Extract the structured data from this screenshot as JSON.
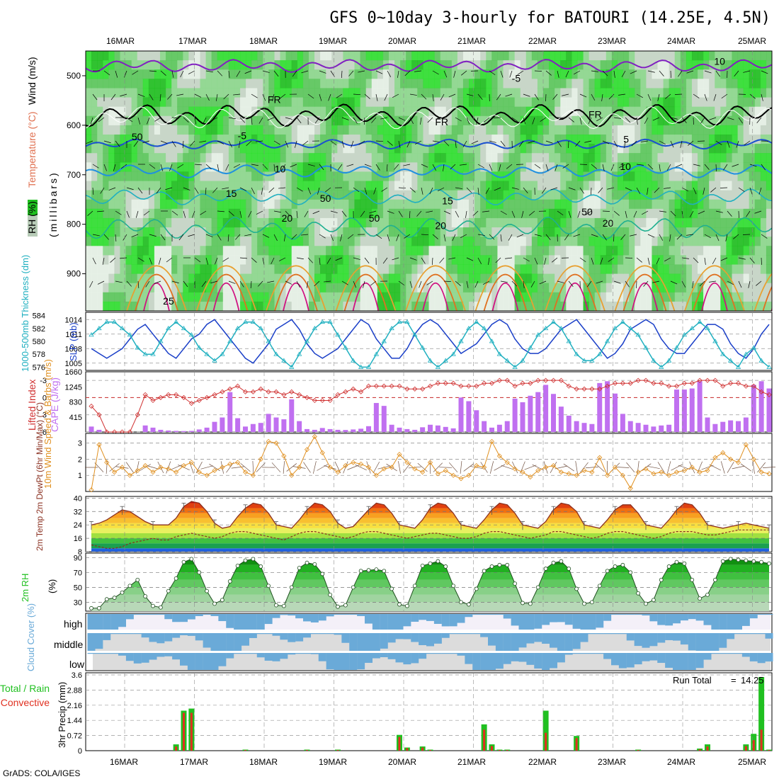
{
  "title": "GFS 0~10day 3-hourly for BATOURI (14.25E, 4.5N)",
  "footer": "GrADS: COLA/IGES",
  "dates": [
    "16MAR",
    "17MAR",
    "18MAR",
    "19MAR",
    "20MAR",
    "21MAR",
    "22MAR",
    "23MAR",
    "24MAR",
    "25MAR"
  ],
  "colors": {
    "cape_bar": "#c070f0",
    "lifted_index": "#d03030",
    "wind_speed": "#e09020",
    "slp": "#1a3fc8",
    "thickness": "#20b0c0",
    "rh_green": "#20c020",
    "cloud_blue": "#6aaad8",
    "precip_total": "#20c020",
    "precip_conv": "#e03020",
    "temp_line": "#8a3020"
  },
  "chart_data": [
    {
      "type": "heatmap",
      "name": "upper-air",
      "axis_title_rh": "RH (%)",
      "axis_title_temp": "Temperature (°C)",
      "axis_title_wind": "Wind (m/s)",
      "ylabel": "(millibars)",
      "yticks": [
        500,
        600,
        700,
        800,
        900
      ],
      "ylim": [
        450,
        975
      ],
      "contour_labels": [
        {
          "text": "-5",
          "x": 5.55,
          "p": 512
        },
        {
          "text": "-5",
          "x": 1.62,
          "p": 628
        },
        {
          "text": "5",
          "x": 7.15,
          "p": 635
        },
        {
          "text": "10",
          "x": 2.15,
          "p": 695
        },
        {
          "text": "10",
          "x": 7.1,
          "p": 690
        },
        {
          "text": "15",
          "x": 1.45,
          "p": 745
        },
        {
          "text": "15",
          "x": 4.55,
          "p": 760
        },
        {
          "text": "20",
          "x": 2.25,
          "p": 795
        },
        {
          "text": "20",
          "x": 4.45,
          "p": 810
        },
        {
          "text": "20",
          "x": 6.85,
          "p": 805
        },
        {
          "text": "25",
          "x": 0.55,
          "p": 962
        },
        {
          "text": "FR",
          "x": 2.05,
          "p": 555
        },
        {
          "text": "FR",
          "x": 4.45,
          "p": 600
        },
        {
          "text": "FR",
          "x": 6.65,
          "p": 585
        },
        {
          "text": "50",
          "x": 0.1,
          "p": 630
        },
        {
          "text": "50",
          "x": 2.8,
          "p": 755
        },
        {
          "text": "50",
          "x": 3.5,
          "p": 795
        },
        {
          "text": "50",
          "x": 6.55,
          "p": 782
        },
        {
          "text": "10",
          "x": 8.45,
          "p": 478
        }
      ]
    },
    {
      "type": "line",
      "name": "slp-thickness",
      "ylabel_left": "1000-500mb Thickness (dm)",
      "ylabel_right": "SLP (mb)",
      "left_ticks": [
        576,
        578,
        580,
        582,
        584
      ],
      "right_ticks": [
        1005,
        1008,
        1011,
        1014
      ],
      "series": [
        {
          "name": "SLP",
          "axis": "right",
          "values": [
            1008,
            1007,
            1006,
            1007,
            1008,
            1010,
            1012,
            1013,
            1011,
            1009,
            1007,
            1006,
            1008,
            1010,
            1011,
            1013,
            1014,
            1012,
            1010,
            1008,
            1006,
            1005,
            1007,
            1009,
            1012,
            1013,
            1014,
            1012,
            1009,
            1007,
            1006,
            1007,
            1008,
            1010,
            1012,
            1014,
            1013,
            1010,
            1008,
            1006,
            1006,
            1008,
            1011,
            1013,
            1014,
            1013,
            1011,
            1009,
            1007,
            1008,
            1009,
            1011,
            1013,
            1014,
            1013,
            1010,
            1008,
            1007,
            1007,
            1008,
            1010,
            1012,
            1013,
            1014,
            1012,
            1010,
            1008,
            1006,
            1007,
            1009,
            1012,
            1013,
            1014,
            1013,
            1010,
            1008,
            1007,
            1007,
            1009,
            1011,
            1013,
            1013,
            1012,
            1009,
            1007,
            1006,
            1008,
            1011,
            1013
          ]
        },
        {
          "name": "Thickness",
          "axis": "left",
          "values": [
            581,
            582,
            583,
            583,
            582,
            581,
            579,
            578,
            578,
            580,
            582,
            583,
            582,
            581,
            579,
            578,
            577,
            578,
            580,
            582,
            583,
            583,
            582,
            580,
            578,
            577,
            576,
            578,
            580,
            582,
            583,
            583,
            581,
            579,
            577,
            576,
            576,
            578,
            580,
            582,
            583,
            583,
            581,
            579,
            577,
            576,
            577,
            578,
            580,
            582,
            583,
            582,
            580,
            578,
            577,
            576,
            577,
            579,
            581,
            582,
            583,
            582,
            580,
            578,
            577,
            577,
            578,
            580,
            582,
            583,
            582,
            581,
            579,
            577,
            576,
            577,
            579,
            581,
            582,
            583,
            582,
            580,
            578,
            577,
            576,
            578,
            579,
            577,
            576
          ]
        }
      ]
    },
    {
      "type": "bar",
      "name": "cape-li",
      "ylabel_left": "Lifted Index",
      "ylabel_right": "CAPE (J/kg)",
      "left_ticks": [
        -3,
        0,
        3,
        6
      ],
      "right_ticks": [
        415,
        830,
        1245,
        1660
      ],
      "cape": [
        150,
        60,
        10,
        0,
        0,
        0,
        0,
        180,
        120,
        60,
        40,
        30,
        25,
        30,
        70,
        120,
        280,
        400,
        1100,
        380,
        150,
        220,
        250,
        500,
        400,
        350,
        900,
        300,
        80,
        60,
        110,
        80,
        60,
        55,
        70,
        90,
        160,
        800,
        720,
        200,
        120,
        80,
        60,
        130,
        200,
        180,
        140,
        100,
        950,
        850,
        600,
        300,
        120,
        200,
        300,
        920,
        820,
        1000,
        1100,
        1300,
        1050,
        700,
        450,
        300,
        250,
        220,
        1350,
        1400,
        1060,
        500,
        300,
        250,
        200,
        150,
        180,
        200,
        1170,
        1170,
        1200,
        1400,
        400,
        220,
        280,
        320,
        300,
        400,
        1300,
        1400,
        1200
      ],
      "li": [
        1.5,
        3,
        6,
        6,
        6,
        6,
        3,
        -0.5,
        0.5,
        0,
        -0.5,
        -0.5,
        0,
        1,
        0.5,
        0,
        -0.5,
        -1,
        -1.5,
        -2,
        -1,
        -1,
        -1.5,
        -1,
        -1,
        -0.5,
        -1,
        -0.5,
        0,
        0.5,
        0.5,
        0.5,
        -0.5,
        -1,
        -1.5,
        -1,
        -2,
        -2,
        -2,
        -2,
        -2,
        -1.5,
        -1.5,
        -1.5,
        -2,
        -2.5,
        -2.5,
        -2.5,
        -2,
        -2,
        -2,
        -2.5,
        -2.5,
        -3,
        -3,
        -2,
        -2.5,
        -2.5,
        -3,
        -3,
        -3,
        -3,
        -2,
        -1.5,
        -1.5,
        -1.5,
        -1.5,
        -2,
        -2.5,
        -2.5,
        -2.5,
        -3,
        -3,
        -2.5,
        -2.5,
        -2,
        -2,
        -2.5,
        -2.5,
        -3,
        -3,
        -3,
        -2,
        -2.5,
        -2.5,
        -2,
        -2,
        -1,
        -0.5
      ]
    },
    {
      "type": "line",
      "name": "wind10m",
      "ylabel": "10m Wind Speed & Barbs (m/s)",
      "yticks": [
        1,
        2,
        3
      ],
      "values": [
        0.1,
        2.9,
        1.8,
        1.2,
        1.5,
        1.0,
        1.3,
        1.6,
        1.2,
        1.5,
        1.4,
        1.2,
        1.6,
        1.8,
        1.2,
        1.0,
        1.3,
        1.5,
        1.7,
        1.8,
        1.2,
        1.0,
        2.0,
        3.1,
        3.0,
        2.2,
        1.0,
        1.5,
        2.6,
        3.4,
        2.4,
        1.5,
        1.2,
        1.6,
        1.8,
        1.7,
        1.5,
        1.0,
        1.4,
        1.5,
        2.3,
        1.8,
        1.4,
        1.2,
        1.8,
        1.1,
        1.3,
        1.0,
        0.8,
        1.0,
        1.6,
        1.5,
        3.1,
        2.2,
        1.8,
        1.4,
        1.2,
        0.9,
        1.3,
        1.5,
        1.6,
        1.2,
        1.1,
        1.0,
        1.3,
        1.2,
        2.1,
        1.0,
        1.5,
        1.0,
        0.2,
        1.2,
        1.4,
        1.1,
        1.2,
        1.0,
        1.2,
        1.3,
        1.5,
        1.2,
        1.3,
        2.1,
        2.4,
        2.0,
        1.8,
        2.9,
        2.0,
        1.2,
        1.1
      ]
    },
    {
      "type": "area",
      "name": "temp2m",
      "ylabel": "2m Temp 2m DewPt (6hr Min/Max) (°C)",
      "yticks": [
        8,
        16,
        24,
        32,
        40
      ],
      "temp": [
        24,
        25,
        27,
        30,
        33,
        32,
        29,
        26,
        24,
        24,
        24,
        28,
        35,
        38,
        37,
        32,
        25,
        22,
        23,
        29,
        34,
        37,
        36,
        31,
        24,
        23,
        22,
        27,
        33,
        37,
        36,
        32,
        25,
        22,
        23,
        28,
        33,
        37,
        36,
        31,
        24,
        23,
        22,
        27,
        34,
        37,
        36,
        31,
        24,
        23,
        22,
        27,
        33,
        37,
        36,
        31,
        24,
        23,
        22,
        26,
        33,
        37,
        36,
        32,
        24,
        23,
        22,
        27,
        33,
        36,
        36,
        31,
        24,
        23,
        22,
        27,
        33,
        37,
        36,
        31,
        24,
        23,
        22,
        23,
        24,
        25,
        24,
        23,
        22
      ],
      "dewpt": [
        12,
        11,
        10,
        10,
        11,
        13,
        14,
        15,
        16,
        15,
        15,
        17,
        18,
        19,
        18,
        17,
        16,
        17,
        19,
        20,
        20,
        19,
        18,
        17,
        16,
        15,
        17,
        19,
        20,
        20,
        19,
        18,
        17,
        16,
        17,
        19,
        20,
        20,
        19,
        18,
        17,
        16,
        17,
        18,
        19,
        19,
        18,
        17,
        16,
        16,
        17,
        19,
        20,
        20,
        19,
        18,
        17,
        16,
        17,
        18,
        20,
        20,
        19,
        18,
        17,
        16,
        17,
        19,
        20,
        20,
        19,
        18,
        17,
        16,
        17,
        19,
        20,
        20,
        20,
        19,
        18,
        18,
        19,
        20,
        21,
        21,
        21,
        21,
        21
      ]
    },
    {
      "type": "area",
      "name": "rh2m",
      "ylabel": "2m RH",
      "ylabel_unit": "(%)",
      "yticks": [
        30,
        50,
        70,
        90
      ],
      "values": [
        22,
        22,
        34,
        36,
        43,
        52,
        60,
        38,
        25,
        23,
        45,
        62,
        84,
        88,
        70,
        45,
        28,
        33,
        58,
        79,
        86,
        88,
        78,
        52,
        26,
        25,
        50,
        76,
        83,
        81,
        68,
        40,
        24,
        26,
        50,
        72,
        73,
        74,
        72,
        48,
        27,
        25,
        52,
        79,
        82,
        85,
        78,
        52,
        30,
        27,
        48,
        72,
        78,
        80,
        80,
        55,
        29,
        28,
        50,
        75,
        83,
        85,
        75,
        48,
        28,
        30,
        52,
        72,
        78,
        80,
        70,
        42,
        28,
        33,
        60,
        78,
        84,
        82,
        60,
        35,
        40,
        60,
        85,
        88,
        87,
        86,
        85,
        84,
        82
      ],
      "vertical_markers": [
        0.5,
        1.35,
        1.45,
        2.4,
        2.5,
        3.7,
        4.85,
        5.75,
        6.75,
        7.95,
        8.75,
        9.2
      ]
    },
    {
      "type": "heatmap",
      "name": "cloud",
      "ylabel": "Cloud Cover (%)",
      "rows": [
        "high",
        "middle",
        "low"
      ]
    },
    {
      "type": "bar",
      "name": "precip",
      "ylabel_left": "Total / Rain",
      "ylabel_left2": "Convective",
      "ylabel": "3hr Precip (mm)",
      "yticks": [
        0,
        0.72,
        1.44,
        2.16,
        2.88,
        3.6
      ],
      "run_total_label": "Run Total",
      "run_total_eq": "=",
      "run_total_value": "14.25",
      "total": [
        0,
        0,
        0,
        0,
        0,
        0,
        0,
        0,
        0,
        0,
        0,
        0.3,
        1.9,
        2.0,
        0,
        0,
        0,
        0,
        0,
        0,
        0.05,
        0,
        0,
        0,
        0,
        0,
        0,
        0,
        0.05,
        0,
        0,
        0,
        0.05,
        0,
        0,
        0,
        0,
        0,
        0,
        0,
        0.75,
        0.15,
        0,
        0.2,
        0.05,
        0,
        0,
        0,
        0,
        0,
        0,
        1.25,
        0.3,
        0.05,
        0.05,
        0,
        0,
        0,
        0,
        1.9,
        0,
        0,
        0,
        0.7,
        0,
        0,
        0,
        0,
        0,
        0,
        0,
        0.05,
        0,
        0,
        0,
        0,
        0,
        0,
        0,
        0.1,
        0.3,
        0,
        0,
        0,
        0,
        0.3,
        0.8,
        3.5,
        0.05
      ],
      "conv": [
        0,
        0,
        0,
        0,
        0,
        0,
        0,
        0,
        0,
        0,
        0,
        0.2,
        1.8,
        1.8,
        0,
        0,
        0,
        0,
        0,
        0,
        0.03,
        0,
        0,
        0,
        0,
        0,
        0,
        0,
        0.03,
        0,
        0,
        0,
        0.03,
        0,
        0,
        0,
        0,
        0,
        0,
        0,
        0.65,
        0.12,
        0,
        0.15,
        0.03,
        0,
        0,
        0,
        0,
        0,
        0,
        1.0,
        0.22,
        0.03,
        0.03,
        0,
        0,
        0,
        0,
        0.85,
        0,
        0,
        0,
        0.6,
        0,
        0,
        0,
        0,
        0,
        0,
        0,
        0.03,
        0,
        0,
        0,
        0,
        0,
        0,
        0,
        0.06,
        0.2,
        0,
        0,
        0,
        0,
        0.22,
        0.5,
        1.0,
        0.03
      ]
    }
  ]
}
